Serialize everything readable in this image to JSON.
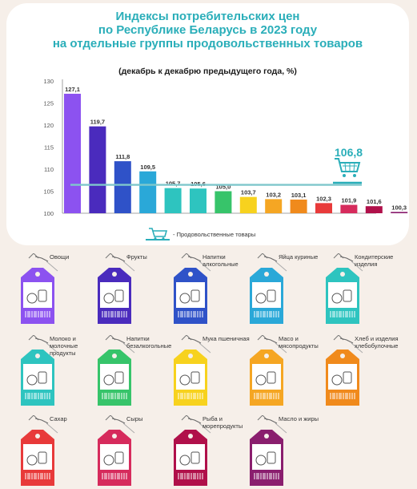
{
  "title_lines": [
    "Индексы потребительских цен",
    "по Республике Беларусь в 2023 году",
    "на отдельные группы продовольственных товаров"
  ],
  "subtitle": "(декабрь к декабрю предыдущего года, %)",
  "legend_label": "- Продовольственные товары",
  "colors": {
    "accent": "#2aaeb9",
    "bars": [
      "#8c52f0",
      "#4a2bbd",
      "#2f52c8",
      "#2aa8d8",
      "#2ec4bf",
      "#2ec4bf",
      "#37c46a",
      "#f7d21e",
      "#f5a623",
      "#f08a1c",
      "#e83a3a",
      "#d62b5c",
      "#b0104a",
      "#8a1e6e"
    ]
  },
  "chart_data": {
    "type": "bar",
    "title": "Индексы потребительских цен по Республике Беларусь в 2023 году на отдельные группы продовольственных товаров",
    "subtitle": "(декабрь к декабрю предыдущего года, %)",
    "categories": [
      "Овощи",
      "Фрукты",
      "Напитки алкогольные",
      "Яйца куриные",
      "Кондитерские изделия",
      "Молоко и молочные продукты",
      "Напитки безалкогольные",
      "Мука пшеничная",
      "Масо и мясопродукты",
      "Хлеб и изделия хлебобулочные",
      "Сахар",
      "Сыры",
      "Рыба и морепродукты",
      "Масло и жиры"
    ],
    "values": [
      127.1,
      119.7,
      111.8,
      109.5,
      105.7,
      105.6,
      105.0,
      103.7,
      103.2,
      103.1,
      102.3,
      101.9,
      101.6,
      100.3
    ],
    "value_labels": [
      "127,1",
      "119,7",
      "111,8",
      "109,5",
      "105,7",
      "105,6",
      "105,0",
      "103,7",
      "103,2",
      "103,1",
      "102,3",
      "101,9",
      "101,6",
      "100,3"
    ],
    "yticks": [
      "100",
      "105",
      "110",
      "115",
      "120",
      "125",
      "130"
    ],
    "ylim": [
      100,
      130
    ],
    "reference_line": {
      "name": "Продовольственные товары",
      "value": 106.8,
      "label": "106,8"
    },
    "grid": false,
    "legend": "bottom"
  },
  "tags": [
    {
      "label": "Овощи",
      "color": "#8c52f0"
    },
    {
      "label": "Фрукты",
      "color": "#4a2bbd"
    },
    {
      "label": "Напитки алкогольные",
      "color": "#2f52c8"
    },
    {
      "label": "Яйца куриные",
      "color": "#2aa8d8"
    },
    {
      "label": "Кондитерские изделия",
      "color": "#2ec4bf"
    },
    {
      "label": "Молоко и молочные продукты",
      "color": "#2ec4bf"
    },
    {
      "label": "Напитки безалкогольные",
      "color": "#37c46a"
    },
    {
      "label": "Мука пшеничная",
      "color": "#f7d21e"
    },
    {
      "label": "Масо и мясопродукты",
      "color": "#f5a623"
    },
    {
      "label": "Хлеб и изделия хлебобулочные",
      "color": "#f08a1c"
    },
    {
      "label": "Сахар",
      "color": "#e83a3a"
    },
    {
      "label": "Сыры",
      "color": "#d62b5c"
    },
    {
      "label": "Рыба и морепродукты",
      "color": "#b0104a"
    },
    {
      "label": "Масло и жиры",
      "color": "#8a1e6e"
    }
  ]
}
